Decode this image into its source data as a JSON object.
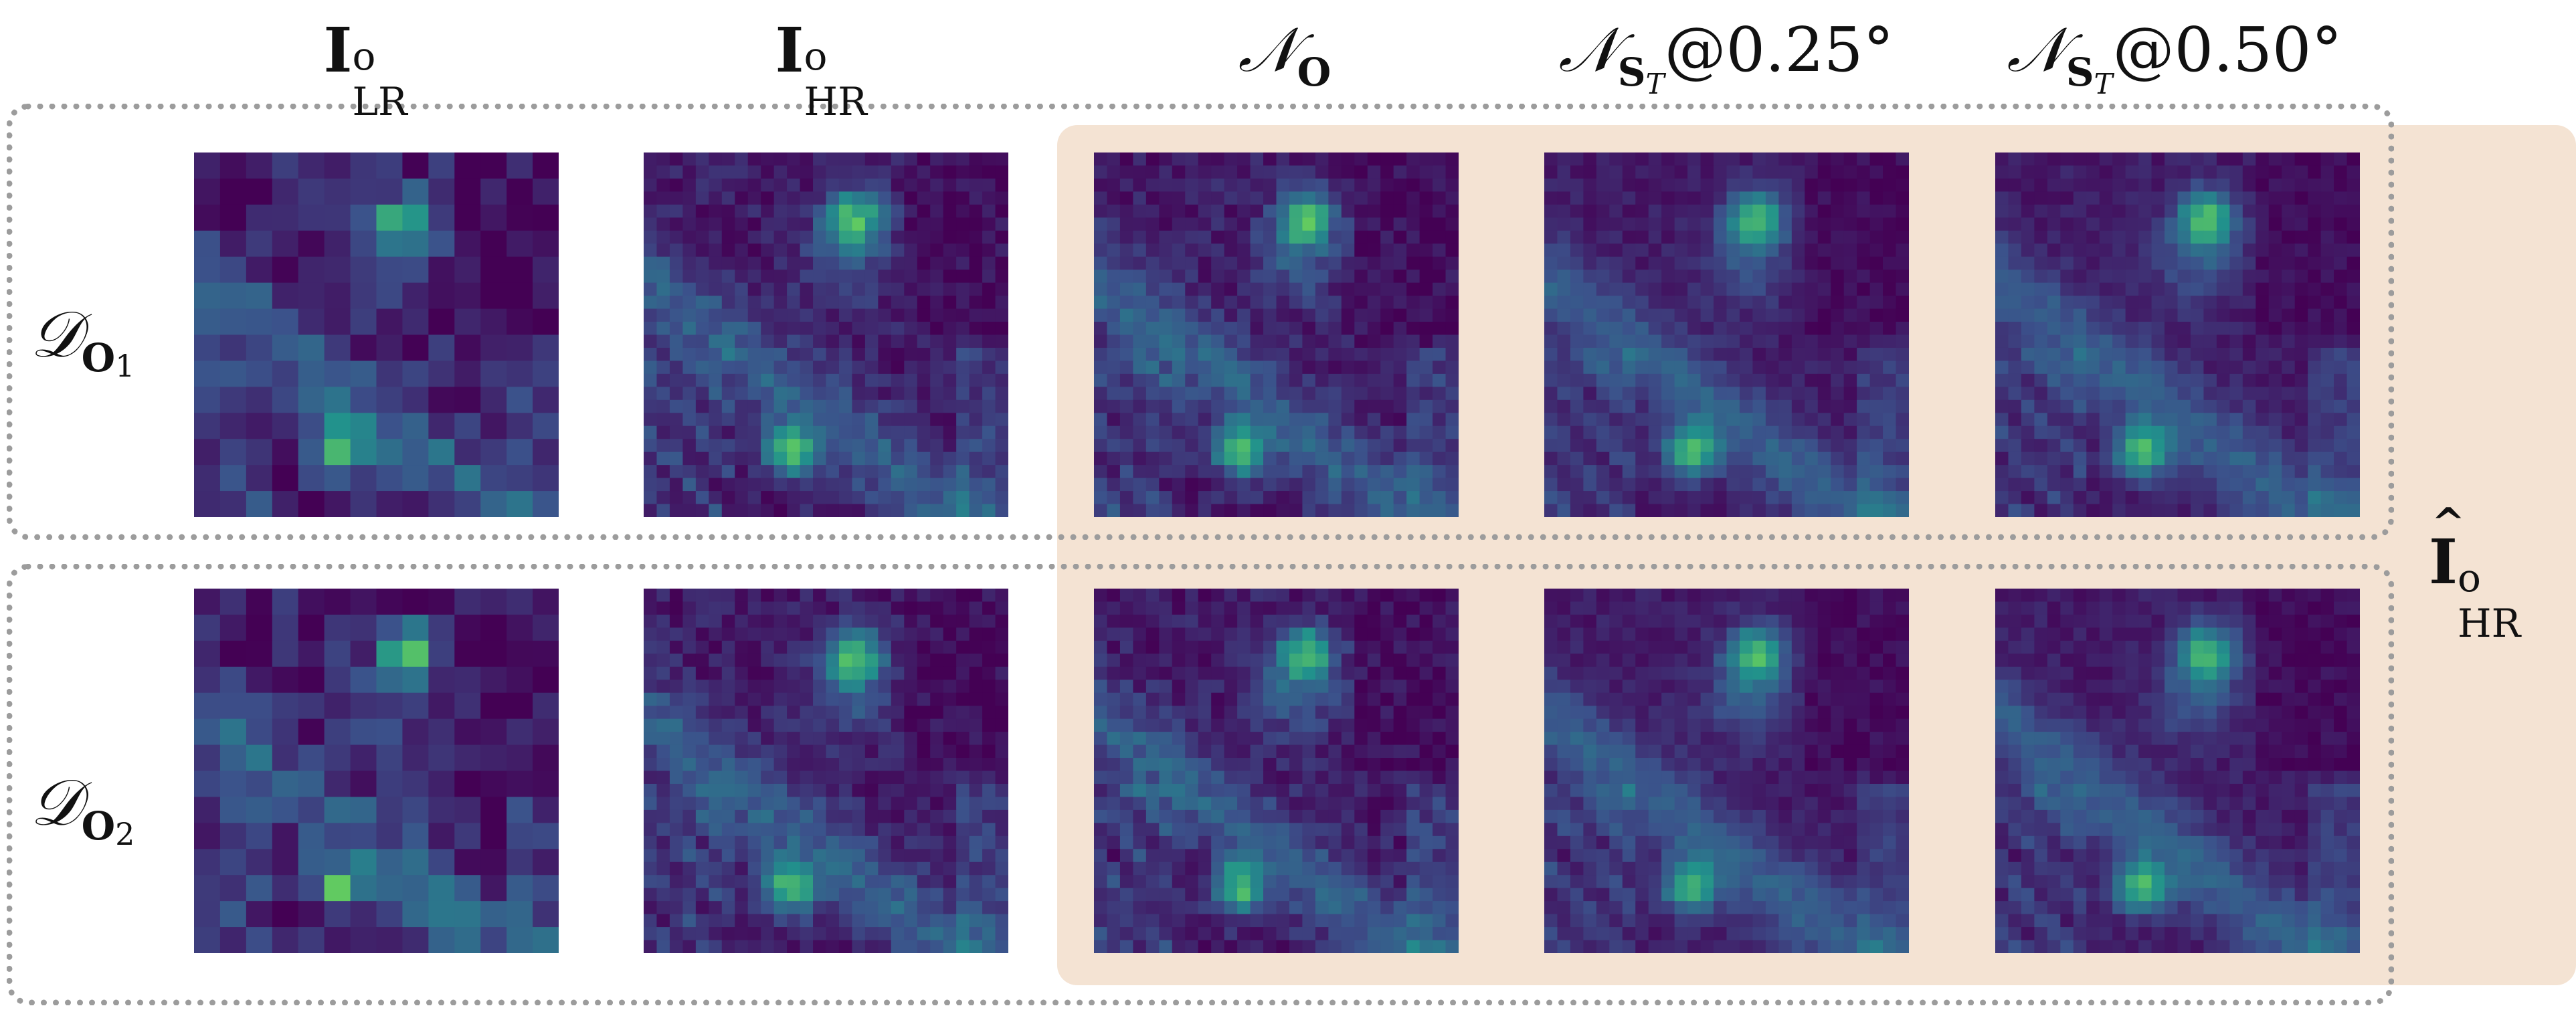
{
  "columns": [
    {
      "key": "lr",
      "base": "I",
      "sup": "o",
      "sub": "LR"
    },
    {
      "key": "hr",
      "base": "I",
      "sup": "o",
      "sub": "HR"
    },
    {
      "key": "no",
      "base": "𝒩",
      "sub": "O"
    },
    {
      "key": "nst025",
      "base": "𝒩",
      "sub": "S",
      "subsub": "T",
      "suffix": "@0.25°"
    },
    {
      "key": "nst050",
      "base": "𝒩",
      "sub": "S",
      "subsub": "T",
      "suffix": "@0.50°"
    }
  ],
  "rows": [
    {
      "base": "𝒟",
      "sub": "O",
      "subsub": "1"
    },
    {
      "base": "𝒟",
      "sub": "O",
      "subsub": "2"
    }
  ],
  "side_label": {
    "base": "I",
    "sup": "o",
    "sub": "HR"
  },
  "colors": {
    "highlight": "#f4e3d3",
    "dotted_border": "#9c9c9c",
    "viridis_low": "#440154",
    "viridis_mid": "#21918c",
    "viridis_high": "#fde725"
  }
}
